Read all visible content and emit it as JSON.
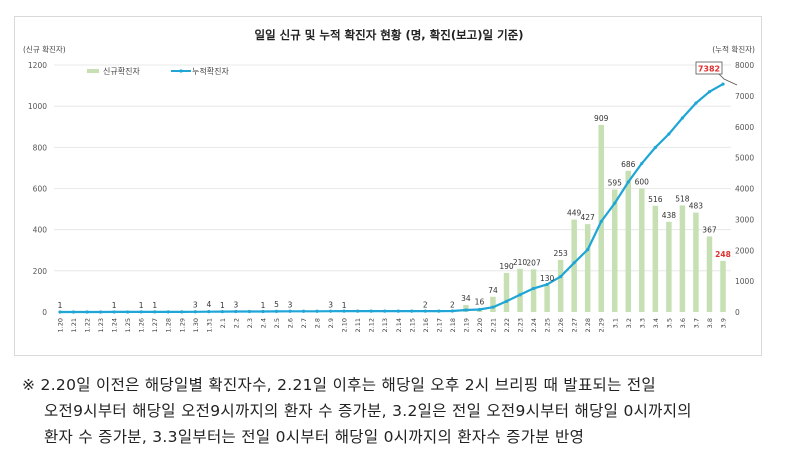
{
  "chart_data": {
    "type": "bar+line",
    "title": "일일 신규 및 누적 확진자 현황 (명, 확진(보고)일 기준)",
    "ylabel_left": "(신규 확진자)",
    "ylabel_right": "(누적 확진자)",
    "ylim_left": [
      0,
      1200
    ],
    "ylim_right": [
      0,
      8000
    ],
    "yticks_left": [
      "0",
      "200",
      "400",
      "600",
      "800",
      "1000",
      "1200"
    ],
    "yticks_right": [
      "0",
      "1000",
      "2000",
      "3000",
      "4000",
      "5000",
      "6000",
      "7000",
      "8000"
    ],
    "grid": true,
    "legend_placement": "top-left",
    "categories": [
      "1.20",
      "1.21",
      "1.22",
      "1.23",
      "1.24",
      "1.25",
      "1.26",
      "1.27",
      "1.28",
      "1.29",
      "1.30",
      "1.31",
      "2.1",
      "2.2",
      "2.3",
      "2.4",
      "2.5",
      "2.6",
      "2.7",
      "2.8",
      "2.9",
      "2.10",
      "2.11",
      "2.12",
      "2.13",
      "2.14",
      "2.15",
      "2.16",
      "2.17",
      "2.18",
      "2.19",
      "2.20",
      "2.21",
      "2.22",
      "2.23",
      "2.24",
      "2.25",
      "2.26",
      "2.27",
      "2.28",
      "2.29",
      "3.1",
      "3.2",
      "3.3",
      "3.4",
      "3.5",
      "3.6",
      "3.7",
      "3.8",
      "3.9"
    ],
    "series": [
      {
        "name": "신규확진자",
        "type": "bar",
        "axis": "left",
        "color": "#c6e0b4",
        "values": [
          1,
          0,
          0,
          0,
          1,
          0,
          1,
          1,
          0,
          0,
          3,
          4,
          1,
          3,
          0,
          1,
          5,
          3,
          0,
          0,
          3,
          1,
          0,
          0,
          0,
          0,
          0,
          2,
          0,
          2,
          34,
          16,
          74,
          190,
          210,
          207,
          130,
          253,
          449,
          427,
          909,
          595,
          686,
          600,
          516,
          438,
          518,
          483,
          367,
          248
        ]
      },
      {
        "name": "누적확진자",
        "type": "line",
        "axis": "right",
        "color": "#1fa5d6",
        "values": [
          1,
          1,
          1,
          1,
          2,
          2,
          3,
          4,
          4,
          4,
          7,
          11,
          12,
          15,
          15,
          16,
          21,
          24,
          24,
          24,
          27,
          28,
          28,
          28,
          28,
          28,
          28,
          30,
          30,
          32,
          66,
          82,
          156,
          346,
          556,
          763,
          893,
          1146,
          1595,
          2022,
          2931,
          3526,
          4212,
          4812,
          5328,
          5766,
          6284,
          6767,
          7134,
          7382
        ]
      }
    ],
    "highlight_label": "7382",
    "highlight_color": "#e0302f"
  },
  "footnote": {
    "mark": "※",
    "lines": [
      "2.20일 이전은 해당일별 확진자수, 2.21일 이후는 해당일 오후 2시 브리핑 때 발표되는 전일",
      "오전9시부터 해당일 오전9시까지의 환자 수 증가분, 3.2일은 전일 오전9시부터 해당일 0시까지의",
      "환자 수 증가분, 3.3일부터는 전일 0시부터 해당일 0시까지의 환자수 증가분 반영"
    ]
  }
}
